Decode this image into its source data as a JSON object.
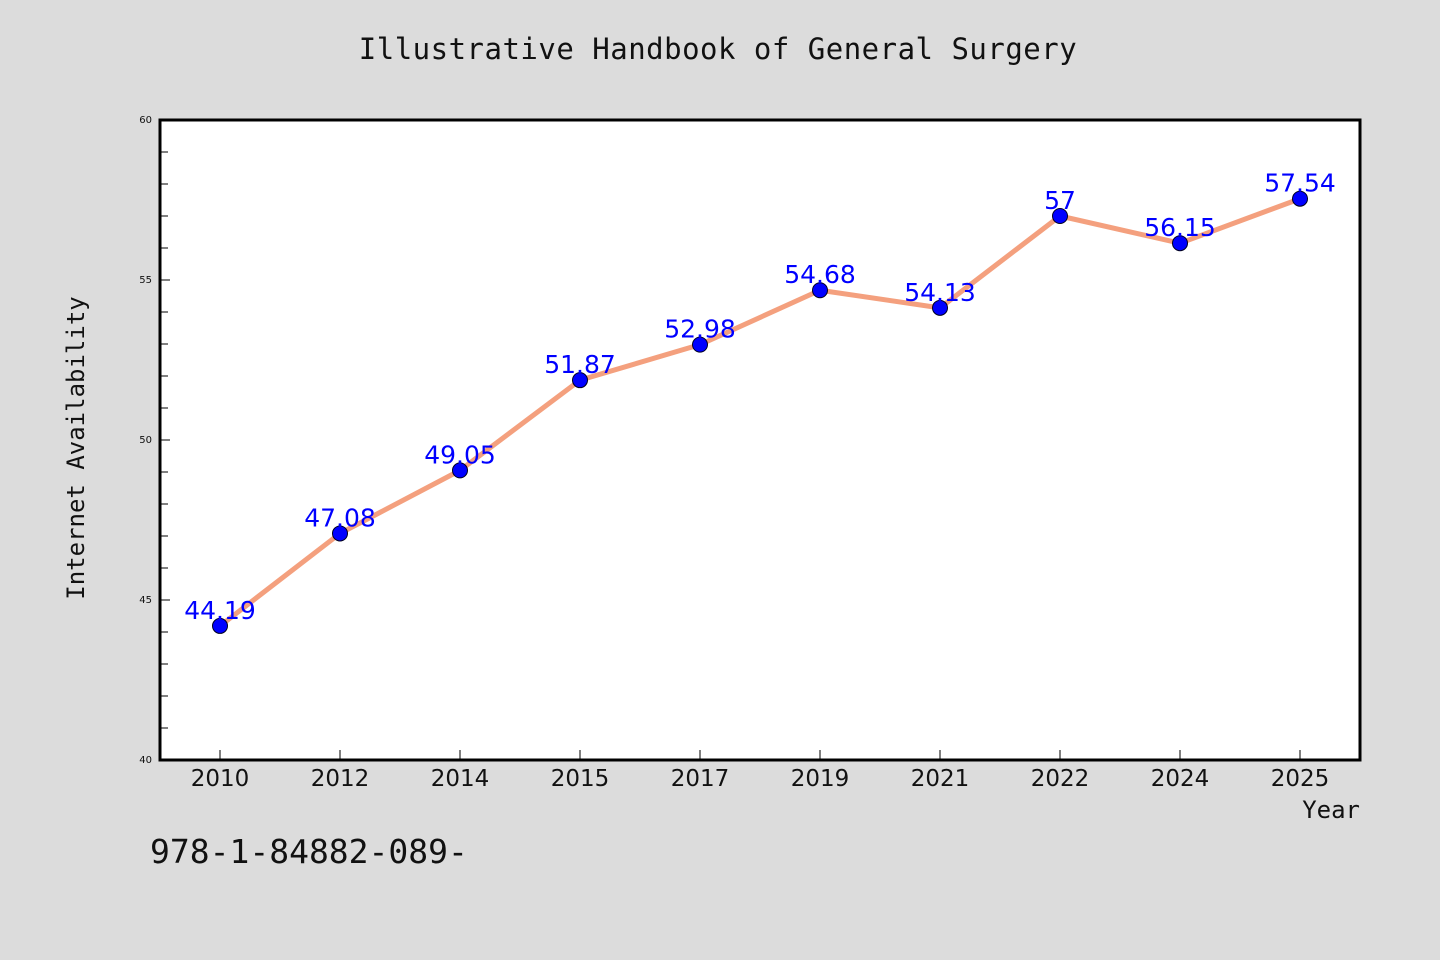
{
  "chart_data": {
    "type": "line",
    "title": "Illustrative Handbook of General Surgery",
    "xlabel": "Year",
    "ylabel": "Internet Availability",
    "categories": [
      "2010",
      "2012",
      "2014",
      "2015",
      "2017",
      "2019",
      "2021",
      "2022",
      "2024",
      "2025"
    ],
    "series": [
      {
        "values": [
          44.19,
          47.08,
          49.05,
          51.87,
          52.98,
          54.68,
          54.13,
          57,
          56.15,
          57.54
        ],
        "labels": [
          "44.19",
          "47.08",
          "49.05",
          "51.87",
          "52.98",
          "54.68",
          "54.13",
          "57",
          "56.15",
          "57.54"
        ]
      }
    ],
    "ylim": [
      40,
      60
    ],
    "yticks": [
      "40",
      "45",
      "50",
      "55",
      "60"
    ],
    "grid": false,
    "line_color": "#f4a07e",
    "marker_color": "#0000ff",
    "label_color": "#0000ff",
    "background_color": "#dcdcdc",
    "plot_background_color": "#ffffff"
  },
  "annotation": {
    "isbn": "978-1-84882-089-"
  }
}
